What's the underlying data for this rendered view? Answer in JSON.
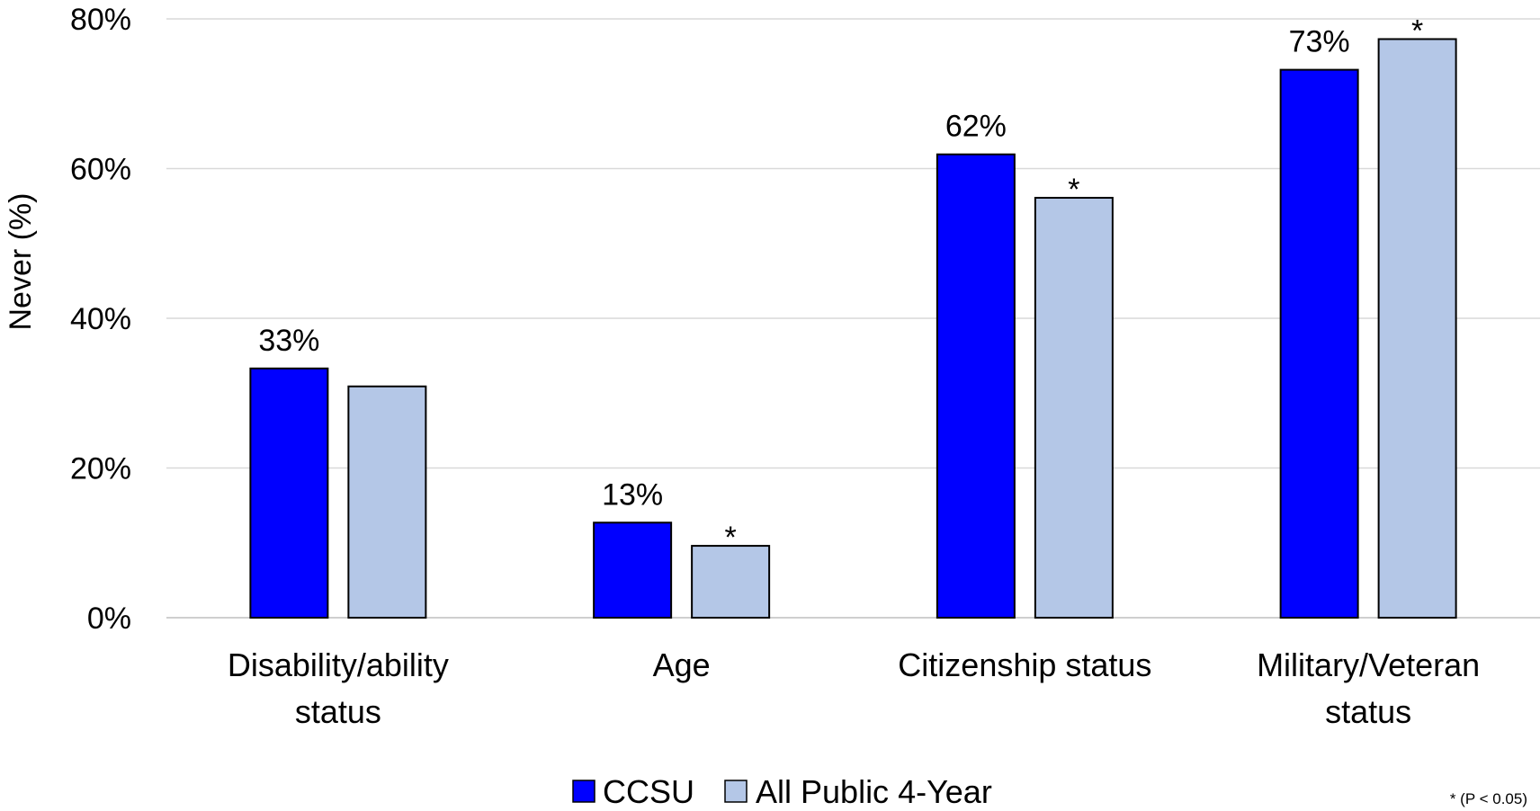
{
  "chart_data": {
    "type": "bar",
    "ylabel": "Never (%)",
    "ylim": [
      0,
      80
    ],
    "yticks": [
      "0%",
      "20%",
      "40%",
      "60%",
      "80%"
    ],
    "ytick_values": [
      0,
      20,
      40,
      60,
      80
    ],
    "categories": [
      [
        "Disability/ability",
        "status"
      ],
      [
        "Age"
      ],
      [
        "Citizenship status"
      ],
      [
        "Military/Veteran",
        "status"
      ]
    ],
    "series": [
      {
        "name": "CCSU",
        "color": "#0000ff",
        "values": [
          33.3,
          12.7,
          61.9,
          73.2
        ],
        "labels": [
          "33%",
          "13%",
          "62%",
          "73%"
        ]
      },
      {
        "name": "All Public 4-Year",
        "color": "#b4c7e7",
        "values": [
          30.9,
          9.6,
          56.1,
          77.3
        ],
        "labels": [
          "",
          "*",
          "*",
          "*"
        ]
      }
    ],
    "grid": true,
    "legend_position": "bottom",
    "footnote": "* (P < 0.05)"
  }
}
